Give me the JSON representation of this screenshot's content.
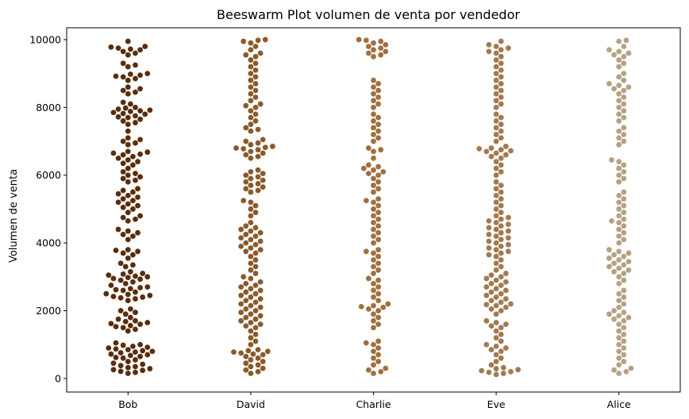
{
  "chart_data": {
    "type": "scatter",
    "subtype": "beeswarm",
    "title": "Beeswarm Plot volumen de venta por vendedor",
    "xlabel": "",
    "ylabel": "Volumen de venta",
    "categories": [
      "Bob",
      "David",
      "Charlie",
      "Eve",
      "Alice"
    ],
    "yticks": [
      0,
      2000,
      4000,
      6000,
      8000,
      10000
    ],
    "ylim": [
      -400,
      10350
    ],
    "grid": false,
    "legend": "none",
    "series": [
      {
        "color": "#5a2d0c",
        "values": [
          150,
          180,
          210,
          240,
          260,
          290,
          320,
          350,
          380,
          420,
          450,
          500,
          550,
          600,
          620,
          650,
          680,
          700,
          720,
          760,
          780,
          800,
          820,
          850,
          870,
          900,
          920,
          950,
          980,
          1000,
          1050,
          1400,
          1450,
          1500,
          1530,
          1560,
          1600,
          1620,
          1650,
          1680,
          1700,
          1750,
          1800,
          1900,
          1950,
          2000,
          2050,
          2300,
          2350,
          2380,
          2400,
          2420,
          2450,
          2480,
          2500,
          2550,
          2600,
          2620,
          2650,
          2680,
          2700,
          2750,
          2800,
          2850,
          2900,
          2930,
          2950,
          2980,
          3000,
          3020,
          3050,
          3080,
          3100,
          3150,
          3300,
          3350,
          3400,
          3550,
          3650,
          3700,
          3750,
          3780,
          3800,
          4100,
          4200,
          4250,
          4300,
          4350,
          4400,
          4650,
          4700,
          4750,
          4800,
          4900,
          5000,
          5050,
          5100,
          5150,
          5200,
          5250,
          5300,
          5350,
          5400,
          5450,
          5500,
          5550,
          5600,
          5800,
          5850,
          5900,
          5950,
          6000,
          6050,
          6100,
          6200,
          6300,
          6350,
          6400,
          6450,
          6500,
          6550,
          6600,
          6620,
          6650,
          6680,
          6700,
          6900,
          6950,
          7000,
          7050,
          7100,
          7300,
          7500,
          7550,
          7600,
          7650,
          7700,
          7720,
          7750,
          7800,
          7820,
          7850,
          7880,
          7900,
          7920,
          7950,
          7980,
          8000,
          8100,
          8150,
          8400,
          8450,
          8500,
          8550,
          8600,
          8800,
          8850,
          8900,
          8920,
          8950,
          8980,
          9000,
          9200,
          9250,
          9300,
          9550,
          9600,
          9650,
          9700,
          9720,
          9750,
          9780,
          9800,
          9950
        ]
      },
      {
        "color": "#8b5a2b",
        "values": [
          150,
          200,
          250,
          300,
          350,
          400,
          450,
          500,
          550,
          600,
          650,
          700,
          720,
          750,
          780,
          800,
          820,
          850,
          1000,
          1100,
          1200,
          1300,
          1400,
          1500,
          1550,
          1600,
          1650,
          1700,
          1750,
          1800,
          1850,
          1900,
          1950,
          2000,
          2050,
          2100,
          2150,
          2200,
          2250,
          2300,
          2350,
          2400,
          2450,
          2500,
          2550,
          2600,
          2650,
          2700,
          2750,
          2800,
          2850,
          2950,
          3000,
          3100,
          3200,
          3300,
          3400,
          3500,
          3600,
          3700,
          3750,
          3800,
          3850,
          3900,
          3950,
          4000,
          4050,
          4100,
          4150,
          4200,
          4250,
          4300,
          4350,
          4400,
          4450,
          4500,
          4600,
          4800,
          4900,
          5000,
          5100,
          5200,
          5250,
          5500,
          5550,
          5600,
          5650,
          5700,
          5750,
          5800,
          5850,
          5900,
          5950,
          6000,
          6050,
          6100,
          6150,
          6500,
          6550,
          6600,
          6650,
          6700,
          6750,
          6780,
          6800,
          6820,
          6850,
          6900,
          6950,
          7000,
          7050,
          7300,
          7350,
          7400,
          7500,
          7600,
          7700,
          7800,
          7900,
          8000,
          8050,
          8100,
          8200,
          8300,
          8400,
          8500,
          8600,
          8700,
          8800,
          8900,
          9000,
          9100,
          9200,
          9300,
          9400,
          9500,
          9550,
          9600,
          9700,
          9800,
          9900,
          9950,
          9980,
          10000
        ]
      },
      {
        "color": "#a0703f",
        "values": [
          150,
          200,
          250,
          300,
          400,
          500,
          600,
          700,
          800,
          900,
          1000,
          1050,
          1100,
          1500,
          1600,
          1700,
          1800,
          1900,
          2000,
          2050,
          2100,
          2120,
          2150,
          2200,
          2300,
          2400,
          2500,
          2600,
          2700,
          2800,
          2900,
          2950,
          3100,
          3200,
          3300,
          3400,
          3500,
          3600,
          3700,
          3750,
          3800,
          4000,
          4100,
          4200,
          4300,
          4400,
          4500,
          4600,
          4700,
          4800,
          4900,
          5000,
          5100,
          5200,
          5250,
          5300,
          5500,
          5600,
          5700,
          5800,
          5900,
          6000,
          6050,
          6100,
          6150,
          6200,
          6250,
          6300,
          6500,
          6700,
          6750,
          6800,
          7000,
          7100,
          7200,
          7300,
          7400,
          7500,
          7600,
          7700,
          7800,
          8000,
          8100,
          8200,
          8300,
          8400,
          8500,
          8600,
          8700,
          8800,
          9500,
          9550,
          9600,
          9650,
          9700,
          9750,
          9800,
          9850,
          9900,
          9950,
          9980,
          10000
        ]
      },
      {
        "color": "#a37a50",
        "values": [
          120,
          150,
          180,
          200,
          230,
          260,
          290,
          320,
          400,
          500,
          600,
          700,
          800,
          850,
          900,
          950,
          1000,
          1100,
          1200,
          1300,
          1400,
          1500,
          1550,
          1600,
          1650,
          1700,
          1900,
          2000,
          2050,
          2100,
          2150,
          2180,
          2200,
          2250,
          2300,
          2350,
          2400,
          2450,
          2500,
          2550,
          2600,
          2650,
          2700,
          2750,
          2800,
          2850,
          2900,
          2950,
          3000,
          3050,
          3100,
          3200,
          3300,
          3400,
          3500,
          3600,
          3650,
          3700,
          3750,
          3800,
          3850,
          3900,
          3950,
          4000,
          4050,
          4100,
          4150,
          4200,
          4250,
          4300,
          4350,
          4400,
          4450,
          4500,
          4550,
          4600,
          4650,
          4700,
          4750,
          4800,
          4900,
          5000,
          5100,
          5200,
          5300,
          5400,
          5500,
          5600,
          5700,
          5800,
          6000,
          6100,
          6200,
          6300,
          6400,
          6500,
          6550,
          6600,
          6650,
          6700,
          6720,
          6750,
          6780,
          6800,
          6850,
          7000,
          7100,
          7200,
          7300,
          7400,
          7500,
          7600,
          7700,
          7800,
          8000,
          8100,
          8200,
          8300,
          8400,
          8500,
          8600,
          8700,
          8800,
          8900,
          9000,
          9100,
          9200,
          9300,
          9400,
          9500,
          9600,
          9650,
          9700,
          9750,
          9800,
          9850,
          9950
        ]
      },
      {
        "color": "#b5a283",
        "values": [
          150,
          200,
          250,
          300,
          400,
          500,
          600,
          700,
          800,
          900,
          1000,
          1100,
          1200,
          1300,
          1400,
          1500,
          1600,
          1700,
          1750,
          1800,
          1850,
          1900,
          1950,
          2000,
          2100,
          2200,
          2300,
          2400,
          2500,
          2600,
          2800,
          2900,
          3000,
          3100,
          3150,
          3200,
          3250,
          3300,
          3350,
          3400,
          3450,
          3500,
          3550,
          3600,
          3650,
          3700,
          3750,
          3800,
          4000,
          4100,
          4200,
          4300,
          4400,
          4500,
          4600,
          4650,
          4700,
          4800,
          4900,
          5000,
          5100,
          5200,
          5300,
          5400,
          5500,
          5800,
          5900,
          6000,
          6100,
          6200,
          6300,
          6400,
          6450,
          6900,
          7000,
          7100,
          7200,
          7300,
          7400,
          7600,
          7700,
          7800,
          7900,
          8000,
          8100,
          8200,
          8300,
          8400,
          8500,
          8550,
          8600,
          8650,
          8700,
          8800,
          8900,
          9000,
          9200,
          9300,
          9400,
          9500,
          9550,
          9600,
          9650,
          9700,
          9800,
          9950,
          9980
        ]
      }
    ]
  }
}
